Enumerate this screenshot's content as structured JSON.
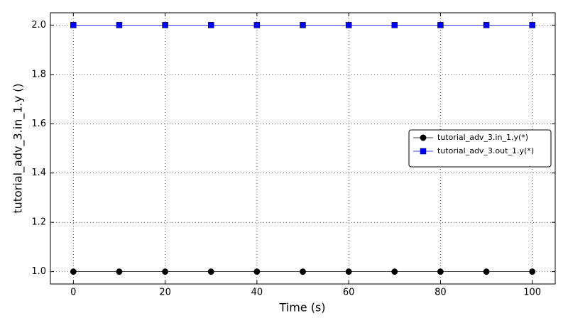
{
  "chart_data": {
    "type": "line",
    "xlabel": "Time (s)",
    "ylabel": "tutorial_adv_3.in_1.y ()",
    "x": [
      0,
      10,
      20,
      30,
      40,
      50,
      60,
      70,
      80,
      90,
      100
    ],
    "series": [
      {
        "name": "tutorial_adv_3.in_1.y(*)",
        "color": "#000000",
        "marker": "circle",
        "values": [
          1,
          1,
          1,
          1,
          1,
          1,
          1,
          1,
          1,
          1,
          1
        ]
      },
      {
        "name": "tutorial_adv_3.out_1.y(*)",
        "color": "#0000ff",
        "marker": "square",
        "values": [
          2,
          2,
          2,
          2,
          2,
          2,
          2,
          2,
          2,
          2,
          2
        ]
      }
    ],
    "xlim": [
      -5,
      105
    ],
    "xticks": [
      0,
      20,
      40,
      60,
      80,
      100
    ],
    "ylim": [
      0.95,
      2.05
    ],
    "yticks": [
      {
        "value": 1,
        "label": "1.0"
      },
      {
        "value": 1.2,
        "label": "1.2"
      },
      {
        "value": 1.4,
        "label": "1.4"
      },
      {
        "value": 1.6,
        "label": "1.6"
      },
      {
        "value": 1.8,
        "label": "1.8"
      },
      {
        "value": 2,
        "label": "2.0"
      }
    ],
    "grid": true,
    "legend": "center right"
  }
}
